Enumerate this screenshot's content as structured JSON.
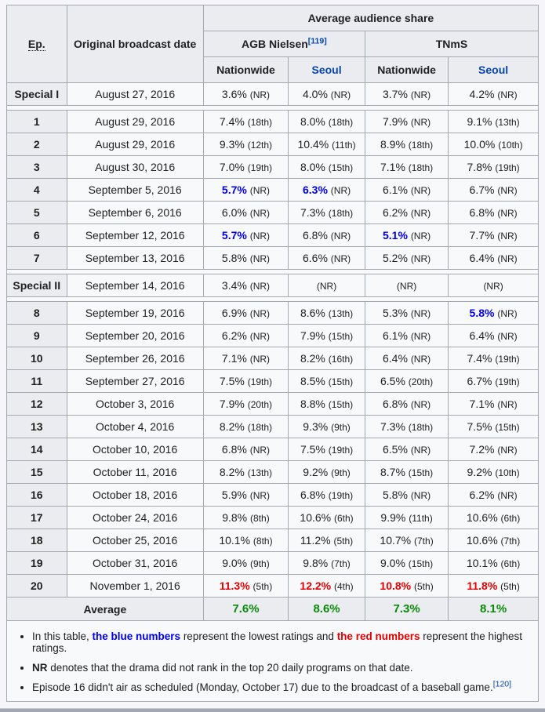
{
  "colors": {
    "link": "#0645ad",
    "lowest": "#0000ee",
    "highest": "#e60000",
    "average": "#0a8a0a"
  },
  "table": {
    "header": {
      "ep": "Ep.",
      "date": "Original broadcast date",
      "avg_share": "Average audience share",
      "agb": "AGB Nielsen",
      "agb_cite": "[119]",
      "tnms": "TNmS",
      "nationwide": "Nationwide",
      "seoul": "Seoul"
    },
    "rows": [
      {
        "ep": "Special I",
        "date": "August 27, 2016",
        "gap_after": true,
        "cells": [
          {
            "v": "3.6%",
            "r": "(NR)"
          },
          {
            "v": "4.0%",
            "r": "(NR)"
          },
          {
            "v": "3.7%",
            "r": "(NR)"
          },
          {
            "v": "4.2%",
            "r": "(NR)"
          }
        ]
      },
      {
        "ep": "1",
        "date": "August 29, 2016",
        "cells": [
          {
            "v": "7.4%",
            "r": "(18th)"
          },
          {
            "v": "8.0%",
            "r": "(18th)"
          },
          {
            "v": "7.9%",
            "r": "(NR)"
          },
          {
            "v": "9.1%",
            "r": "(13th)"
          }
        ]
      },
      {
        "ep": "2",
        "date": "August 29, 2016",
        "cells": [
          {
            "v": "9.3%",
            "r": "(12th)"
          },
          {
            "v": "10.4%",
            "r": "(11th)"
          },
          {
            "v": "8.9%",
            "r": "(18th)"
          },
          {
            "v": "10.0%",
            "r": "(10th)"
          }
        ]
      },
      {
        "ep": "3",
        "date": "August 30, 2016",
        "cells": [
          {
            "v": "7.0%",
            "r": "(19th)"
          },
          {
            "v": "8.0%",
            "r": "(15th)"
          },
          {
            "v": "7.1%",
            "r": "(18th)"
          },
          {
            "v": "7.8%",
            "r": "(19th)"
          }
        ]
      },
      {
        "ep": "4",
        "date": "September 5, 2016",
        "cells": [
          {
            "v": "5.7%",
            "r": "(NR)",
            "c": "lowest"
          },
          {
            "v": "6.3%",
            "r": "(NR)",
            "c": "lowest"
          },
          {
            "v": "6.1%",
            "r": "(NR)"
          },
          {
            "v": "6.7%",
            "r": "(NR)"
          }
        ]
      },
      {
        "ep": "5",
        "date": "September 6, 2016",
        "cells": [
          {
            "v": "6.0%",
            "r": "(NR)"
          },
          {
            "v": "7.3%",
            "r": "(18th)"
          },
          {
            "v": "6.2%",
            "r": "(NR)"
          },
          {
            "v": "6.8%",
            "r": "(NR)"
          }
        ]
      },
      {
        "ep": "6",
        "date": "September 12, 2016",
        "cells": [
          {
            "v": "5.7%",
            "r": "(NR)",
            "c": "lowest"
          },
          {
            "v": "6.8%",
            "r": "(NR)"
          },
          {
            "v": "5.1%",
            "r": "(NR)",
            "c": "lowest"
          },
          {
            "v": "7.7%",
            "r": "(NR)"
          }
        ]
      },
      {
        "ep": "7",
        "date": "September 13, 2016",
        "gap_after": true,
        "cells": [
          {
            "v": "5.8%",
            "r": "(NR)"
          },
          {
            "v": "6.6%",
            "r": "(NR)"
          },
          {
            "v": "5.2%",
            "r": "(NR)"
          },
          {
            "v": "6.4%",
            "r": "(NR)"
          }
        ]
      },
      {
        "ep": "Special II",
        "date": "September 14, 2016",
        "gap_after": true,
        "cells": [
          {
            "v": "3.4%",
            "r": "(NR)"
          },
          {
            "v": "",
            "r": "(NR)"
          },
          {
            "v": "",
            "r": "(NR)"
          },
          {
            "v": "",
            "r": "(NR)"
          }
        ]
      },
      {
        "ep": "8",
        "date": "September 19, 2016",
        "cells": [
          {
            "v": "6.9%",
            "r": "(NR)"
          },
          {
            "v": "8.6%",
            "r": "(13th)"
          },
          {
            "v": "5.3%",
            "r": "(NR)"
          },
          {
            "v": "5.8%",
            "r": "(NR)",
            "c": "lowest"
          }
        ]
      },
      {
        "ep": "9",
        "date": "September 20, 2016",
        "cells": [
          {
            "v": "6.2%",
            "r": "(NR)"
          },
          {
            "v": "7.9%",
            "r": "(15th)"
          },
          {
            "v": "6.1%",
            "r": "(NR)"
          },
          {
            "v": "6.4%",
            "r": "(NR)"
          }
        ]
      },
      {
        "ep": "10",
        "date": "September 26, 2016",
        "cells": [
          {
            "v": "7.1%",
            "r": "(NR)"
          },
          {
            "v": "8.2%",
            "r": "(16th)"
          },
          {
            "v": "6.4%",
            "r": "(NR)"
          },
          {
            "v": "7.4%",
            "r": "(19th)"
          }
        ]
      },
      {
        "ep": "11",
        "date": "September 27, 2016",
        "cells": [
          {
            "v": "7.5%",
            "r": "(19th)"
          },
          {
            "v": "8.5%",
            "r": "(15th)"
          },
          {
            "v": "6.5%",
            "r": "(20th)"
          },
          {
            "v": "6.7%",
            "r": "(19th)"
          }
        ]
      },
      {
        "ep": "12",
        "date": "October 3, 2016",
        "cells": [
          {
            "v": "7.9%",
            "r": "(20th)"
          },
          {
            "v": "8.8%",
            "r": "(15th)"
          },
          {
            "v": "6.8%",
            "r": "(NR)"
          },
          {
            "v": "7.1%",
            "r": "(NR)"
          }
        ]
      },
      {
        "ep": "13",
        "date": "October 4, 2016",
        "cells": [
          {
            "v": "8.2%",
            "r": "(18th)"
          },
          {
            "v": "9.3%",
            "r": "(9th)"
          },
          {
            "v": "7.3%",
            "r": "(18th)"
          },
          {
            "v": "7.5%",
            "r": "(15th)"
          }
        ]
      },
      {
        "ep": "14",
        "date": "October 10, 2016",
        "cells": [
          {
            "v": "6.8%",
            "r": "(NR)"
          },
          {
            "v": "7.5%",
            "r": "(19th)"
          },
          {
            "v": "6.5%",
            "r": "(NR)"
          },
          {
            "v": "7.2%",
            "r": "(NR)"
          }
        ]
      },
      {
        "ep": "15",
        "date": "October 11, 2016",
        "cells": [
          {
            "v": "8.2%",
            "r": "(13th)"
          },
          {
            "v": "9.2%",
            "r": "(9th)"
          },
          {
            "v": "8.7%",
            "r": "(15th)"
          },
          {
            "v": "9.2%",
            "r": "(10th)"
          }
        ]
      },
      {
        "ep": "16",
        "date": "October 18, 2016",
        "cells": [
          {
            "v": "5.9%",
            "r": "(NR)"
          },
          {
            "v": "6.8%",
            "r": "(19th)"
          },
          {
            "v": "5.8%",
            "r": "(NR)"
          },
          {
            "v": "6.2%",
            "r": "(NR)"
          }
        ]
      },
      {
        "ep": "17",
        "date": "October 24, 2016",
        "cells": [
          {
            "v": "9.8%",
            "r": "(8th)"
          },
          {
            "v": "10.6%",
            "r": "(6th)"
          },
          {
            "v": "9.9%",
            "r": "(11th)"
          },
          {
            "v": "10.6%",
            "r": "(6th)"
          }
        ]
      },
      {
        "ep": "18",
        "date": "October 25, 2016",
        "cells": [
          {
            "v": "10.1%",
            "r": "(8th)"
          },
          {
            "v": "11.2%",
            "r": "(5th)"
          },
          {
            "v": "10.7%",
            "r": "(7th)"
          },
          {
            "v": "10.6%",
            "r": "(7th)"
          }
        ]
      },
      {
        "ep": "19",
        "date": "October 31, 2016",
        "cells": [
          {
            "v": "9.0%",
            "r": "(9th)"
          },
          {
            "v": "9.8%",
            "r": "(7th)"
          },
          {
            "v": "9.0%",
            "r": "(15th)"
          },
          {
            "v": "10.1%",
            "r": "(6th)"
          }
        ]
      },
      {
        "ep": "20",
        "date": "November 1, 2016",
        "cells": [
          {
            "v": "11.3%",
            "r": "(5th)",
            "c": "highest"
          },
          {
            "v": "12.2%",
            "r": "(4th)",
            "c": "highest"
          },
          {
            "v": "10.8%",
            "r": "(5th)",
            "c": "highest"
          },
          {
            "v": "11.8%",
            "r": "(5th)",
            "c": "highest"
          }
        ]
      }
    ],
    "average": {
      "label": "Average",
      "values": [
        "7.6%",
        "8.6%",
        "7.3%",
        "8.1%"
      ]
    }
  },
  "footnotes": {
    "note1": {
      "pre": "In this table, ",
      "blue": "the blue numbers",
      "mid": " represent the lowest ratings and ",
      "red": "the red numbers",
      "post": " represent the highest ratings."
    },
    "note2": {
      "bold": "NR",
      "post": " denotes that the drama did not rank in the top 20 daily programs on that date."
    },
    "note3": {
      "text": "Episode 16 didn't air as scheduled (Monday, October 17) due to the broadcast of a baseball game.",
      "cite": "[120]"
    }
  }
}
